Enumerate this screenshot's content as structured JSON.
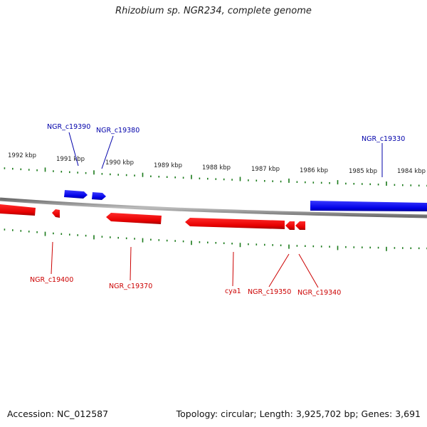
{
  "title": "Rhizobium sp. NGR234, complete genome",
  "footer": {
    "accession": "Accession: NC_012587",
    "summary": "Topology: circular; Length: 3,925,702 bp; Genes: 3,691"
  },
  "colors": {
    "forward_gene": "#0000e6",
    "reverse_gene": "#e60000",
    "tick": "#1a7a1a",
    "backbone": "#8c8c8c",
    "forward_label": "#0000aa",
    "reverse_label": "#cc0000"
  },
  "scale_labels": [
    "1992 kbp",
    "1991 kbp",
    "1990 kbp",
    "1989 kbp",
    "1988 kbp",
    "1987 kbp",
    "1986 kbp",
    "1985 kbp",
    "1984 kbp"
  ],
  "forward_genes": [
    "NGR_c19390",
    "NGR_c19380",
    "NGR_c19330"
  ],
  "reverse_genes": [
    "NGR_c19400",
    "NGR_c19370",
    "cya1",
    "NGR_c19350",
    "NGR_c19340"
  ]
}
